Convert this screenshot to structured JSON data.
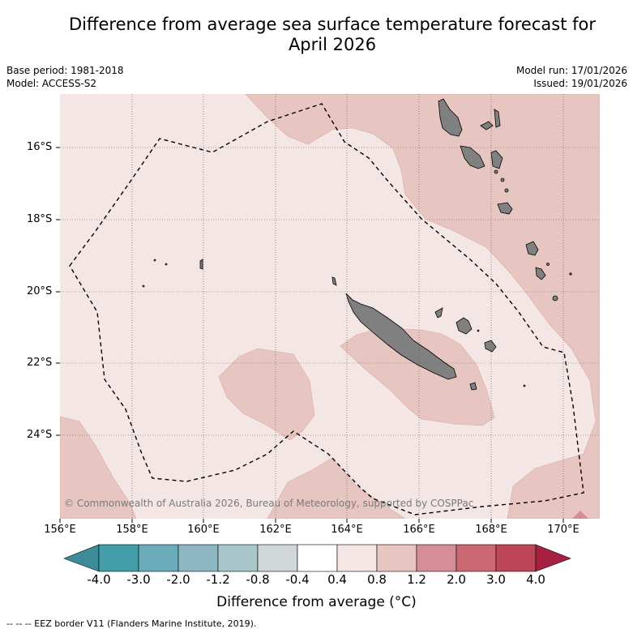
{
  "title": "Difference from average sea surface temperature forecast for April 2026",
  "title_line1": "Difference from average sea surface temperature forecast for",
  "title_line2": "April 2026",
  "base_period": "Base period: 1981-2018",
  "model": "Model: ACCESS-S2",
  "model_run": "Model run: 17/01/2026",
  "issued": "Issued: 19/01/2026",
  "map": {
    "lat_labels": [
      "16°S",
      "18°S",
      "20°S",
      "22°S",
      "24°S"
    ],
    "lon_labels": [
      "156°E",
      "158°E",
      "160°E",
      "162°E",
      "164°E",
      "166°E",
      "168°E",
      "170°E"
    ],
    "copyright": "© Commonwealth of Australia 2026, Bureau of Meteorology, supported by COSPPac",
    "land_color": "#808080",
    "anomaly_0_4_to_0_8_color": "#f3e6e5",
    "anomaly_0_8_to_1_2_color": "#e7c6c1",
    "anomaly_1_2_to_2_0_color": "#d58e95"
  },
  "colorbar": {
    "title": "Difference from average (°C)",
    "ticks": [
      "-4.0",
      "-3.0",
      "-2.0",
      "-1.2",
      "-0.8",
      "-0.4",
      "0.4",
      "0.8",
      "1.2",
      "2.0",
      "3.0",
      "4.0"
    ],
    "colors": [
      "#3d8c98",
      "#449ea9",
      "#6aacb9",
      "#8db7c2",
      "#a9c6cb",
      "#d1d6d8",
      "#ffffff",
      "#f3e6e5",
      "#e7c6c1",
      "#d58e95",
      "#cb6871",
      "#bd4556",
      "#a71f41"
    ]
  },
  "footer": "-- -- -- EEZ border V11 (Flanders Marine Institute, 2019)."
}
